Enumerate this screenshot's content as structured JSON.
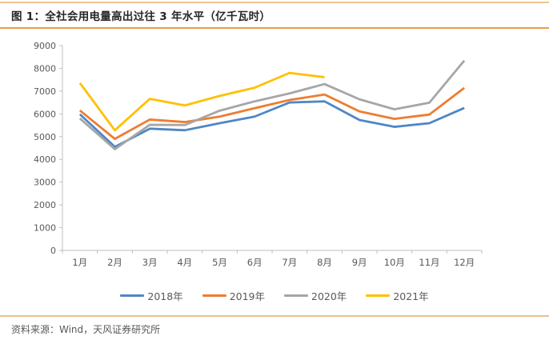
{
  "page": {
    "figure_title": "图 1：全社会用电量高出过往 3 年水平（亿千瓦时）",
    "source_note": "资料来源：Wind，天风证券研究所"
  },
  "colors": {
    "top_rule": "#f0c493",
    "title_rule": "#ee9d45",
    "footer_rule": "#ecc08f",
    "axis": "#bfbfbf",
    "tick_label": "#595959"
  },
  "chart_data": {
    "type": "line",
    "title": "全社会用电量高出过往 3 年水平（亿千瓦时）",
    "categories": [
      "1月",
      "2月",
      "3月",
      "4月",
      "5月",
      "6月",
      "7月",
      "8月",
      "9月",
      "10月",
      "11月",
      "12月"
    ],
    "series": [
      {
        "name": "2018年",
        "color": "#4e87c5",
        "values": [
          5980,
          4550,
          5350,
          5280,
          5590,
          5880,
          6500,
          6550,
          5730,
          5430,
          5590,
          6260
        ]
      },
      {
        "name": "2019年",
        "color": "#ed7d31",
        "values": [
          6150,
          4900,
          5750,
          5640,
          5880,
          6250,
          6610,
          6850,
          6110,
          5780,
          5970,
          7140
        ]
      },
      {
        "name": "2020年",
        "color": "#a6a6a6",
        "values": [
          5800,
          4450,
          5520,
          5510,
          6140,
          6550,
          6900,
          7310,
          6640,
          6200,
          6490,
          8340
        ]
      },
      {
        "name": "2021年",
        "color": "#ffc000",
        "values": [
          7360,
          5280,
          6660,
          6370,
          6790,
          7150,
          7800,
          7610,
          null,
          null,
          null,
          null
        ]
      }
    ],
    "ylim": [
      0,
      9000
    ],
    "y_ticks": [
      0,
      1000,
      2000,
      3000,
      4000,
      5000,
      6000,
      7000,
      8000,
      9000
    ],
    "xlabel": "",
    "ylabel": "",
    "grid": false,
    "legend_position": "bottom"
  }
}
